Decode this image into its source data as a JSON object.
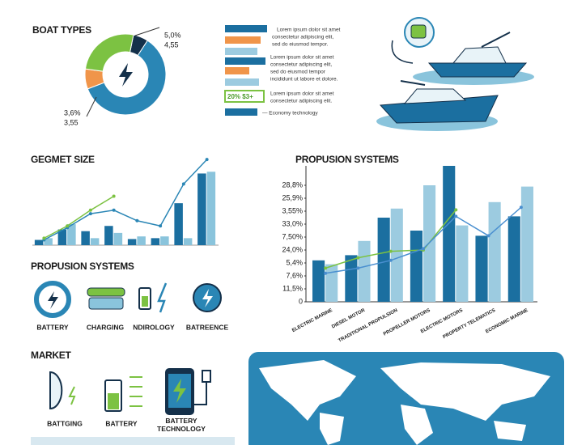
{
  "chart_data": [
    {
      "type": "pie",
      "title": "BOAT TYPES",
      "values": [
        6,
        60,
        8,
        26
      ],
      "colors": [
        "#14304a",
        "#2a86b5",
        "#f0954a",
        "#7cc242"
      ],
      "annotations": [
        "5,0%",
        "4,55",
        "3,6%",
        "3,55"
      ]
    },
    {
      "type": "bar",
      "title": "GEGMET SIZE",
      "categories": [
        null,
        null,
        null,
        null,
        null,
        null,
        null,
        null
      ],
      "ylim": [
        0,
        100
      ],
      "series": [
        {
          "color": "#1b6fa0",
          "values": [
            6,
            18,
            16,
            22,
            7,
            8,
            48,
            82
          ]
        },
        {
          "color": "#8ac4dc",
          "values": [
            8,
            24,
            8,
            14,
            10,
            10,
            8,
            84
          ]
        },
        {
          "type": "line",
          "color": "#2a86b5",
          "values": [
            6,
            20,
            36,
            40,
            28,
            22,
            70,
            98
          ]
        },
        {
          "type": "line",
          "color": "#7cc242",
          "values": [
            8,
            22,
            40,
            56,
            null,
            null,
            null,
            null
          ]
        }
      ]
    },
    {
      "type": "bar",
      "title": "PROPUSION SYSTEMS",
      "grid": false,
      "categories": [
        "ELECTRIC MARINE",
        "DIESEL MOTOR",
        "TRADITIONAL PROPULSION",
        "PROPELLER MOTORS",
        "ELECTRIC MOTORS",
        "PROPERTY TELEMATICS",
        "ECONOMIC MARINE"
      ],
      "ylim": [
        0,
        10.5
      ],
      "yticks": [
        0,
        {
          "value": 1,
          "label": "11,5%"
        },
        {
          "value": 2,
          "label": "7,6%"
        },
        {
          "value": 3,
          "label": "5,4%"
        },
        {
          "value": 4,
          "label": "24,0%"
        },
        {
          "value": 5,
          "label": "7,50%"
        },
        {
          "value": 6,
          "label": "33,0%"
        },
        {
          "value": 7,
          "label": "3,55%"
        },
        {
          "value": 8,
          "label": "25,9%"
        },
        {
          "value": 9,
          "label": "28,8%"
        }
      ],
      "series": [
        {
          "color": "#1b6fa0",
          "values": [
            3.2,
            3.6,
            6.5,
            5.5,
            10.5,
            5.1,
            6.6
          ]
        },
        {
          "color": "#9ccbe0",
          "values": [
            2.9,
            4.7,
            7.2,
            9,
            5.9,
            7.7,
            8.9
          ]
        },
        {
          "type": "line",
          "color": "#7cc242",
          "values": [
            2.6,
            3.4,
            3.9,
            4,
            7.1,
            null,
            null
          ]
        },
        {
          "type": "line",
          "color": "#4a8fd0",
          "values": [
            2.2,
            2.6,
            3.2,
            4.1,
            6.6,
            5.1,
            7.3
          ]
        }
      ]
    }
  ],
  "info": {
    "rows": [
      "Lorem ipsum dolor sit amet",
      "consectetur adipiscing elit,",
      "sed do eiusmod tempor.",
      "Lorem ipsum dolor sit amet",
      "consectetur adipiscing elit,",
      "sed do eiusmod tempor",
      "incididunt ut labore et dolore."
    ],
    "tag": "20% $3+",
    "tag_rows": [
      "Lorem ipsum dolor sit amet",
      "consectetur adipiscing elit."
    ],
    "footer": "— Economy technology"
  },
  "propulsion_icons": {
    "title": "PROPUSION SYSTEMS",
    "labels": [
      "BATTERY",
      "CHARGING",
      "NDIROLOGY",
      "BATREENCE"
    ]
  },
  "market": {
    "title": "MARKET",
    "labels": [
      "BATTGING",
      "BATTERY",
      "BATTERY TECHNOLOGY"
    ]
  }
}
